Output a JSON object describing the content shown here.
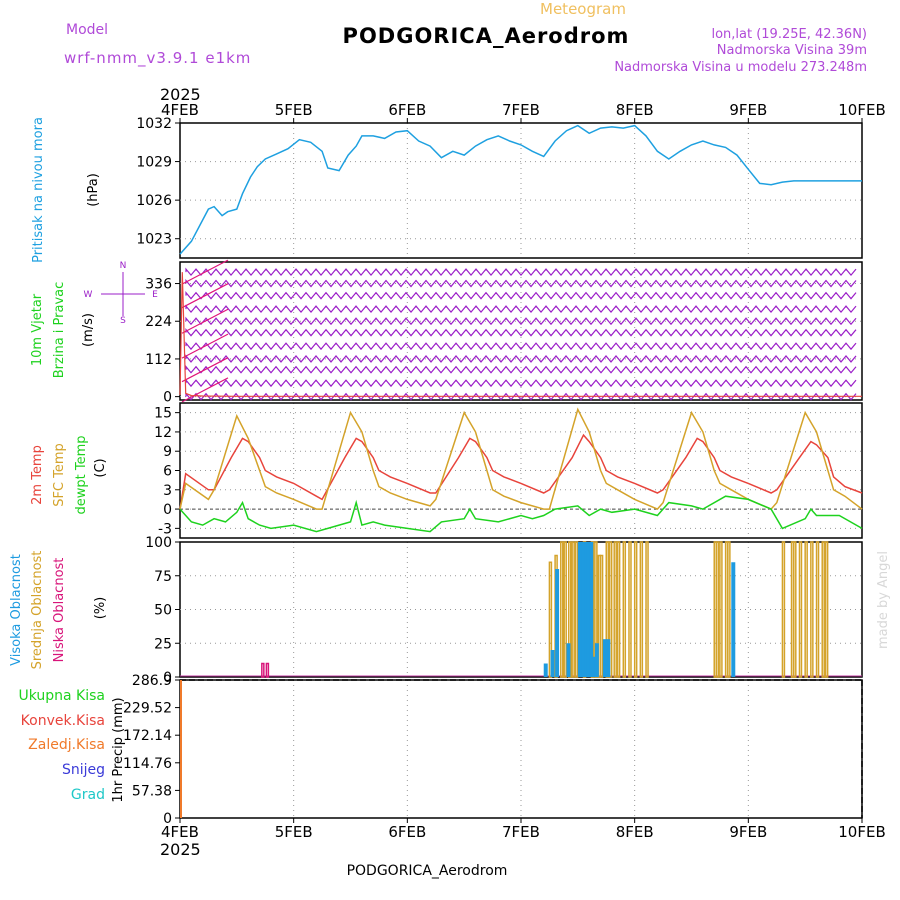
{
  "header": {
    "meteogram_label": "Meteogram",
    "station_title": "PODGORICA_Aerodrom",
    "model_label": "Model",
    "model_name": "wrf-nmm_v3.9.1  e1km",
    "lonlat": "lon,lat (19.25E, 42.36N)",
    "elevation": "Nadmorska Visina 39m",
    "model_elevation": "Nadmorska Visina u modelu 273.248m",
    "footer_station": "PODGORICA_Aerodrom",
    "credit": "made by Angel"
  },
  "colors": {
    "pressure": "#1ea0e0",
    "wind": "#9b1fc8",
    "temp2m": "#e8443c",
    "sfc": "#d4a32a",
    "dewpt": "#1ed21e",
    "cloud_high": "#1e9be0",
    "cloud_mid": "#d4a32a",
    "cloud_low": "#d8157a",
    "snow": "#3a3ad8",
    "grad": "#1ec8c8",
    "conv": "#e8443c",
    "frz": "#f07a2a",
    "total": "#1ed21e",
    "arrow": "#e0157a"
  },
  "chart_data": [
    {
      "type": "line",
      "panel": "pressure",
      "y_title": "Pritisak na nivou mora",
      "ylabel": "(hPa)",
      "x_ticks": [
        "4FEB",
        "5FEB",
        "6FEB",
        "7FEB",
        "8FEB",
        "9FEB",
        "10FEB"
      ],
      "x_year": "2025",
      "ylim": [
        1021.5,
        1032
      ],
      "yticks": [
        "1023",
        "1026",
        "1029",
        "1032"
      ],
      "x_days": [
        0,
        0.1,
        0.25,
        0.3,
        0.37,
        0.42,
        0.5,
        0.55,
        0.62,
        0.68,
        0.75,
        0.85,
        0.95,
        1.05,
        1.15,
        1.25,
        1.3,
        1.4,
        1.48,
        1.55,
        1.6,
        1.7,
        1.8,
        1.9,
        2.0,
        2.1,
        2.2,
        2.3,
        2.4,
        2.5,
        2.6,
        2.7,
        2.8,
        2.9,
        3.0,
        3.1,
        3.2,
        3.3,
        3.4,
        3.5,
        3.6,
        3.7,
        3.8,
        3.9,
        4.0,
        4.1,
        4.2,
        4.3,
        4.4,
        4.5,
        4.6,
        4.7,
        4.8,
        4.9,
        5.0,
        5.1,
        5.2,
        5.3,
        5.4,
        5.5,
        5.6,
        5.7,
        5.8,
        5.9,
        6.0
      ],
      "values": [
        1021.8,
        1022.8,
        1025.3,
        1025.5,
        1024.8,
        1025.1,
        1025.3,
        1026.5,
        1027.8,
        1028.6,
        1029.2,
        1029.6,
        1030.0,
        1030.7,
        1030.5,
        1029.8,
        1028.5,
        1028.3,
        1029.5,
        1030.2,
        1031.0,
        1031.0,
        1030.8,
        1031.3,
        1031.4,
        1030.6,
        1030.2,
        1029.3,
        1029.8,
        1029.5,
        1030.2,
        1030.7,
        1031.0,
        1030.6,
        1030.3,
        1029.8,
        1029.4,
        1030.6,
        1031.4,
        1031.8,
        1031.2,
        1031.6,
        1031.7,
        1031.6,
        1031.8,
        1031.0,
        1029.8,
        1029.2,
        1029.8,
        1030.3,
        1030.6,
        1030.3,
        1030.1,
        1029.5,
        1028.4,
        1027.3,
        1027.2,
        1027.4,
        1027.5,
        1027.5,
        1027.5,
        1027.5,
        1027.5,
        1027.5,
        1027.5
      ]
    },
    {
      "type": "line",
      "panel": "wind",
      "y_title_1": "10m Vjetar",
      "y_title_2": "Brzina i Pravac",
      "ylabel": "(m/s)",
      "ylim": [
        -10,
        400
      ],
      "yticks": [
        "0",
        "112",
        "224",
        "336"
      ],
      "compass": [
        "N",
        "W",
        "E",
        "S"
      ],
      "x_days": [
        0,
        0.02,
        0.05,
        0.1,
        0.2,
        0.5,
        1,
        2,
        3,
        4,
        5,
        6
      ],
      "values": [
        5,
        370,
        10,
        3,
        2,
        1,
        1,
        1,
        1,
        1,
        1,
        1
      ],
      "barb_rows": [
        0,
        40,
        80,
        112,
        150,
        190,
        224,
        260,
        300,
        336,
        370
      ]
    },
    {
      "type": "line",
      "panel": "temperature",
      "y_title_1": "2m Temp",
      "y_title_2": "SFC Temp",
      "y_title_3": "dewpt Temp",
      "ylabel": "(C)",
      "ylim": [
        -4.5,
        16.5
      ],
      "yticks": [
        "-3",
        "0",
        "3",
        "6",
        "9",
        "12",
        "15"
      ],
      "series": [
        {
          "name": "2m Temp",
          "x_days": [
            0,
            0.05,
            0.25,
            0.3,
            0.45,
            0.55,
            0.6,
            0.7,
            0.75,
            0.85,
            1.0,
            1.2,
            1.25,
            1.45,
            1.55,
            1.6,
            1.7,
            1.75,
            1.85,
            2.0,
            2.2,
            2.25,
            2.45,
            2.55,
            2.6,
            2.7,
            2.75,
            2.85,
            3.0,
            3.2,
            3.25,
            3.45,
            3.55,
            3.6,
            3.7,
            3.75,
            3.85,
            4.0,
            4.2,
            4.25,
            4.45,
            4.55,
            4.6,
            4.7,
            4.75,
            4.85,
            5.0,
            5.2,
            5.25,
            5.45,
            5.55,
            5.6,
            5.7,
            5.75,
            5.85,
            6.0
          ],
          "values": [
            0,
            5.5,
            3,
            3,
            8,
            11,
            10.5,
            8,
            6,
            5,
            4,
            2,
            1.5,
            8,
            11,
            10.5,
            8,
            6,
            5,
            4,
            2.5,
            2.5,
            8,
            11,
            10.5,
            8,
            6,
            5,
            4,
            2.5,
            3,
            8,
            11.5,
            10.5,
            8,
            6,
            5,
            4,
            2.5,
            3,
            8,
            11,
            10.5,
            8,
            6,
            5,
            4,
            2.5,
            3,
            8,
            10.5,
            10,
            8,
            5,
            3.5,
            2.5
          ]
        },
        {
          "name": "SFC Temp",
          "x_days": [
            0,
            0.05,
            0.25,
            0.3,
            0.5,
            0.6,
            0.7,
            0.75,
            0.85,
            1.0,
            1.2,
            1.25,
            1.5,
            1.6,
            1.7,
            1.75,
            1.85,
            2.0,
            2.2,
            2.25,
            2.5,
            2.6,
            2.7,
            2.75,
            2.85,
            3.0,
            3.2,
            3.25,
            3.5,
            3.6,
            3.7,
            3.75,
            3.85,
            4.0,
            4.2,
            4.25,
            4.5,
            4.6,
            4.7,
            4.75,
            4.85,
            5.0,
            5.2,
            5.25,
            5.5,
            5.6,
            5.7,
            5.75,
            5.85,
            6.0
          ],
          "values": [
            0,
            4,
            1.5,
            3,
            14.5,
            11,
            6,
            3.5,
            2.5,
            1.5,
            0,
            0,
            15,
            12,
            6,
            3.5,
            2.5,
            1.5,
            0.5,
            1.5,
            15,
            12,
            6,
            3,
            2,
            1,
            0,
            0,
            15.5,
            12,
            6,
            4,
            3,
            1.5,
            0,
            1,
            15,
            12,
            6,
            4,
            3,
            1.5,
            0,
            1,
            15,
            12,
            6,
            3,
            2,
            0
          ]
        },
        {
          "name": "dewpt Temp",
          "x_days": [
            0,
            0.1,
            0.2,
            0.3,
            0.4,
            0.5,
            0.55,
            0.6,
            0.7,
            0.8,
            1.0,
            1.2,
            1.3,
            1.4,
            1.5,
            1.55,
            1.6,
            1.7,
            1.8,
            2.0,
            2.2,
            2.3,
            2.5,
            2.55,
            2.6,
            2.8,
            3.0,
            3.1,
            3.2,
            3.3,
            3.5,
            3.6,
            3.7,
            3.8,
            4.0,
            4.2,
            4.3,
            4.5,
            4.6,
            4.8,
            5.0,
            5.2,
            5.3,
            5.5,
            5.55,
            5.6,
            5.8,
            6.0
          ],
          "values": [
            0,
            -2,
            -2.5,
            -1.5,
            -2,
            -0.5,
            1,
            -1.5,
            -2.5,
            -3,
            -2.5,
            -3.5,
            -3,
            -2.5,
            -2,
            1,
            -2.5,
            -2,
            -2.5,
            -3,
            -3.5,
            -2,
            -1.5,
            0,
            -1.5,
            -2,
            -1,
            -1.5,
            -1,
            0,
            0.5,
            -1,
            0,
            -0.5,
            0,
            -1,
            1,
            0.5,
            0,
            2,
            1.5,
            0,
            -3,
            -1.5,
            0,
            -1,
            -1,
            -3
          ]
        }
      ]
    },
    {
      "type": "bar",
      "panel": "clouds",
      "y_title_1": "Visoka Oblacnost",
      "y_title_2": "Srednja Oblacnost",
      "y_title_3": "Niska Oblacnost",
      "ylabel": "(%)",
      "ylim": [
        0,
        100
      ],
      "yticks": [
        "0",
        "25",
        "50",
        "75",
        "100"
      ],
      "high_x": [
        3.2,
        3.26,
        3.3,
        3.4,
        3.5,
        3.53,
        3.56,
        3.58,
        3.6,
        3.62,
        3.65,
        3.72,
        3.75,
        4.85
      ],
      "high_v": [
        10,
        20,
        80,
        25,
        100,
        100,
        100,
        100,
        100,
        15,
        25,
        28,
        28,
        85
      ],
      "mid_x": [
        3.25,
        3.3,
        3.35,
        3.38,
        3.42,
        3.45,
        3.48,
        3.55,
        3.62,
        3.65,
        3.68,
        3.7,
        3.75,
        3.78,
        3.82,
        3.85,
        3.9,
        3.95,
        4.0,
        4.05,
        4.1,
        4.7,
        4.72,
        4.75,
        4.8,
        4.82,
        5.3,
        5.38,
        5.4,
        5.45,
        5.5,
        5.55,
        5.6,
        5.65,
        5.68
      ],
      "mid_v": [
        85,
        90,
        100,
        100,
        100,
        100,
        100,
        100,
        100,
        100,
        90,
        90,
        100,
        100,
        100,
        100,
        100,
        100,
        100,
        100,
        100,
        100,
        100,
        100,
        100,
        100,
        100,
        100,
        100,
        100,
        100,
        100,
        100,
        100,
        100
      ],
      "low_x": [
        0.72,
        0.76
      ],
      "low_v": [
        10,
        10
      ]
    },
    {
      "type": "bar",
      "panel": "precipitation",
      "legend": [
        "Ukupna Kisa",
        "Konvek.Kisa",
        "Zaledj.Kisa",
        "Snijeg",
        "Grad"
      ],
      "ylabel": "1hr Precip (mm)",
      "ylim": [
        0,
        286.9
      ],
      "yticks": [
        "0",
        "57.38",
        "114.76",
        "172.14",
        "229.52",
        "286.9"
      ],
      "x_days": [
        0
      ],
      "values": [
        286.9
      ]
    }
  ]
}
